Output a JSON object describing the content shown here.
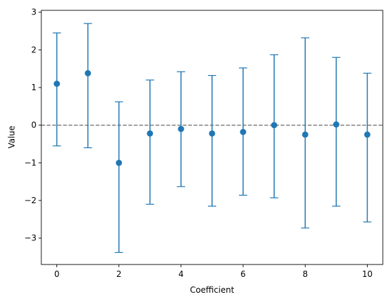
{
  "chart_data": {
    "type": "scatter",
    "title": "",
    "xlabel": "Coefficient",
    "ylabel": "Value",
    "xlim": [
      -0.5,
      10.5
    ],
    "ylim": [
      -3.7,
      3.05
    ],
    "xticks": [
      0,
      2,
      4,
      6,
      8,
      10
    ],
    "yticks": [
      -3,
      -2,
      -1,
      0,
      1,
      2,
      3
    ],
    "xtick_labels": [
      "0",
      "2",
      "4",
      "6",
      "8",
      "10"
    ],
    "ytick_labels": [
      "−3",
      "−2",
      "−1",
      "0",
      "1",
      "2",
      "3"
    ],
    "grid": false,
    "reference_line": {
      "y": 0,
      "style": "dashed",
      "color": "#808080"
    },
    "series": [
      {
        "x": [
          0,
          1,
          2,
          3,
          4,
          5,
          6,
          7,
          8,
          9,
          10
        ],
        "y": [
          1.1,
          1.38,
          -1.0,
          -0.22,
          -0.1,
          -0.22,
          -0.18,
          0.0,
          -0.25,
          0.02,
          -0.25
        ],
        "err_lower": [
          -0.55,
          -0.6,
          -3.38,
          -2.1,
          -1.63,
          -2.15,
          -1.86,
          -1.93,
          -2.73,
          -2.15,
          -2.57
        ],
        "err_upper": [
          2.45,
          2.7,
          0.62,
          1.2,
          1.42,
          1.32,
          1.52,
          1.87,
          2.32,
          1.8,
          1.38
        ],
        "color": "#1f77b4"
      }
    ]
  }
}
